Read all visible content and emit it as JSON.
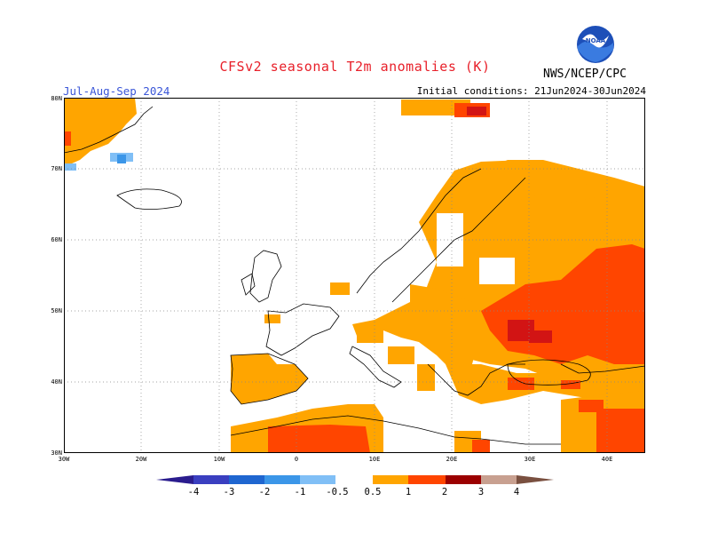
{
  "header": {
    "title": "CFSv2 seasonal T2m anomalies (K)",
    "season": "Jul-Aug-Sep 2024",
    "initial_conditions": "Initial conditions: 21Jun2024-30Jun2024",
    "credit": "NWS/NCEP/CPC",
    "logo_text": "NOAA"
  },
  "map": {
    "lat_labels": [
      "80N",
      "70N",
      "60N",
      "50N",
      "40N",
      "30N"
    ],
    "lon_labels": [
      "30W",
      "20W",
      "10W",
      "0",
      "10E",
      "20E",
      "30E",
      "40E"
    ]
  },
  "colorbar": {
    "labels": [
      "-4",
      "-3",
      "-2",
      "-1",
      "-0.5",
      "0.5",
      "1",
      "2",
      "3",
      "4"
    ],
    "colors": {
      "lt_m4": "#2a1c8e",
      "m4_m3": "#3a3fc0",
      "m3_m2": "#1f66d0",
      "m2_m1": "#3b96e8",
      "m1_m05": "#80bff6",
      "neutral": "#ffffff",
      "p05_p1": "#ffa500",
      "p1_p2": "#ff4500",
      "p2_p3": "#d21414",
      "p3_p4": "#9b0000",
      "gt_p4": "#c8a090",
      "gt_p4_tip": "#7a5040"
    }
  }
}
